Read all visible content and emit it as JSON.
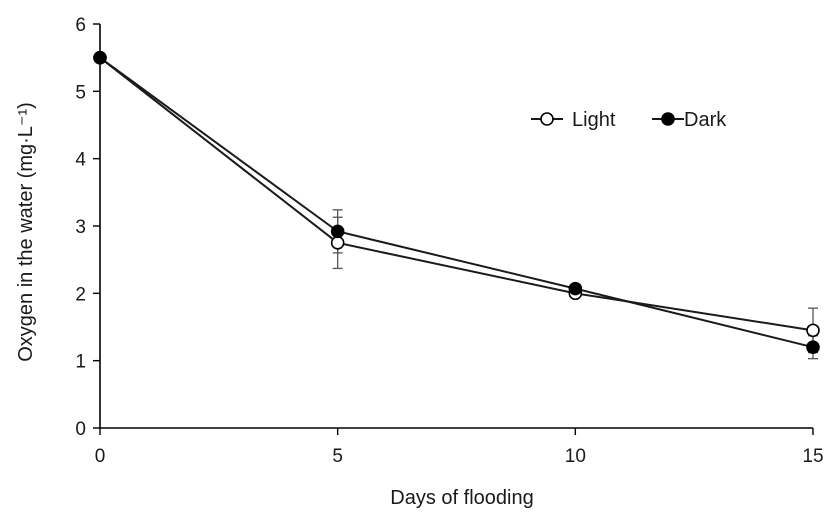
{
  "chart_data": {
    "type": "line",
    "xlabel": "Days of flooding",
    "ylabel": "Oxygen in the water (mg·L⁻¹)",
    "x": [
      0,
      5,
      10,
      15
    ],
    "xlim": [
      0,
      15
    ],
    "ylim": [
      0,
      6
    ],
    "xticks": [
      0,
      5,
      10,
      15
    ],
    "yticks": [
      0,
      1,
      2,
      3,
      4,
      5,
      6
    ],
    "grid": false,
    "legend_position": "top-right",
    "series": [
      {
        "name": "Light",
        "marker": "open-circle",
        "values": [
          5.5,
          2.75,
          2.0,
          1.45
        ],
        "errors": [
          0.0,
          0.38,
          0.05,
          0.33
        ]
      },
      {
        "name": "Dark",
        "marker": "filled-circle",
        "values": [
          5.5,
          2.92,
          2.07,
          1.2
        ],
        "errors": [
          0.0,
          0.32,
          0.05,
          0.17
        ]
      }
    ]
  }
}
